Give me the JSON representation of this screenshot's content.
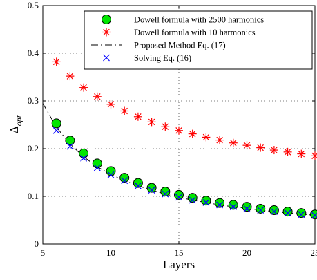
{
  "chart_data": {
    "type": "scatter",
    "title": "",
    "xlabel": "Layers",
    "ylabel_base": "Δ",
    "ylabel_sub": "opt",
    "xlim": [
      5,
      25
    ],
    "ylim": [
      0,
      0.5
    ],
    "x_ticks": [
      5,
      10,
      15,
      20,
      25
    ],
    "x_tick_labels": [
      "5",
      "10",
      "15",
      "20",
      "25"
    ],
    "y_ticks": [
      0,
      0.1,
      0.2,
      0.3,
      0.4,
      0.5
    ],
    "y_tick_labels": [
      "0",
      "0.1",
      "0.2",
      "0.3",
      "0.4",
      "0.5"
    ],
    "grid": true,
    "legend_position": "top-right",
    "series": [
      {
        "name": "Dowell formula with 2500 harmonics",
        "marker": "circle",
        "color": "#00e600",
        "edge_color": "#000000",
        "x": [
          6,
          7,
          8,
          9,
          10,
          11,
          12,
          13,
          14,
          15,
          16,
          17,
          18,
          19,
          20,
          21,
          22,
          23,
          24,
          25
        ],
        "y": [
          0.253,
          0.217,
          0.19,
          0.169,
          0.153,
          0.139,
          0.128,
          0.118,
          0.11,
          0.103,
          0.097,
          0.091,
          0.086,
          0.082,
          0.078,
          0.074,
          0.071,
          0.068,
          0.065,
          0.062
        ]
      },
      {
        "name": "Dowell formula with 10 harmonics",
        "marker": "star",
        "color": "#ff0000",
        "x": [
          6,
          7,
          8,
          9,
          10,
          11,
          12,
          13,
          14,
          15,
          16,
          17,
          18,
          19,
          20,
          21,
          22,
          23,
          24,
          25
        ],
        "y": [
          0.382,
          0.352,
          0.328,
          0.309,
          0.293,
          0.279,
          0.267,
          0.256,
          0.246,
          0.238,
          0.231,
          0.224,
          0.218,
          0.212,
          0.207,
          0.202,
          0.197,
          0.193,
          0.189,
          0.185
        ]
      },
      {
        "name": "Proposed Method Eq. (17)",
        "marker": "dashdot-line",
        "color": "#000000",
        "x": [
          5,
          6,
          7,
          8,
          9,
          10,
          11,
          12,
          13,
          14,
          15,
          16,
          17,
          18,
          19,
          20,
          21,
          22,
          23,
          24,
          25
        ],
        "y": [
          0.295,
          0.245,
          0.21,
          0.183,
          0.162,
          0.146,
          0.133,
          0.122,
          0.113,
          0.105,
          0.098,
          0.092,
          0.087,
          0.082,
          0.078,
          0.075,
          0.071,
          0.068,
          0.065,
          0.063,
          0.06
        ]
      },
      {
        "name": "Solving Eq. (16)",
        "marker": "x",
        "color": "#0000ff",
        "x": [
          6,
          7,
          8,
          9,
          10,
          11,
          12,
          13,
          14,
          15,
          16,
          17,
          18,
          19,
          20,
          21,
          22,
          23,
          24,
          25
        ],
        "y": [
          0.238,
          0.205,
          0.18,
          0.16,
          0.145,
          0.133,
          0.122,
          0.113,
          0.105,
          0.098,
          0.092,
          0.087,
          0.082,
          0.078,
          0.074,
          0.071,
          0.068,
          0.065,
          0.062,
          0.06
        ]
      }
    ]
  }
}
